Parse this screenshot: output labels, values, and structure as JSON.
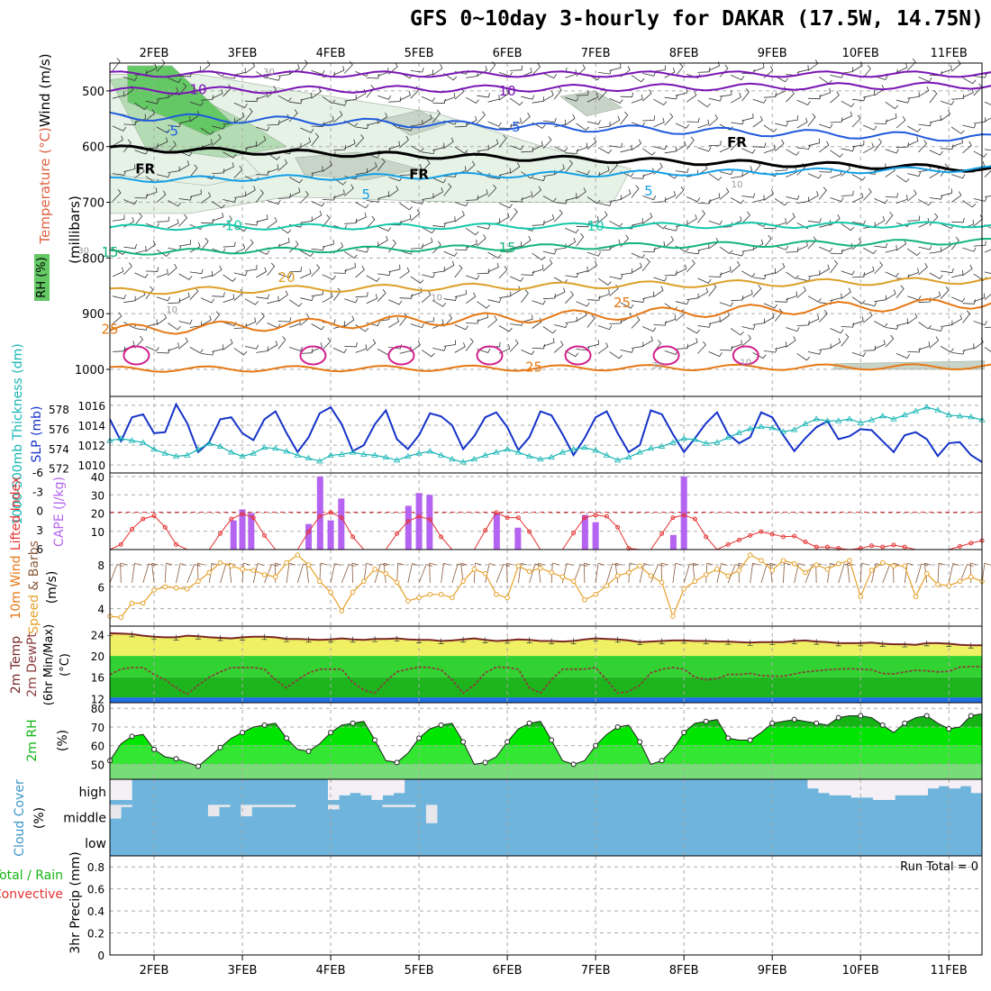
{
  "title": "GFS 0~10day 3-hourly for DAKAR (17.5W, 14.75N)",
  "colors": {
    "rh_light": "#e6f2e6",
    "rh_mid": "#b4dcb4",
    "rh_dark": "#64c864",
    "rh_gray": "#c8d4c8",
    "freezing": "#000000",
    "temp_cold": "#7814b4",
    "temp_blue": "#1e5adc",
    "temp_lightblue": "#14a0e6",
    "temp_teal": "#14c8aa",
    "temp_green": "#14b478",
    "temp_gold": "#dca028",
    "temp_orange": "#e67814",
    "temp_magenta": "#d21e8c",
    "slp": "#1432c8",
    "thickness": "#14b4b4",
    "lifted_index": "#e63232",
    "cape": "#b464f0",
    "wind_speed": "#e6a028",
    "temp_line": "#7a2828",
    "dewpt_line": "#8c3c3c",
    "cloud": "#6eb4dc",
    "cloud_clear": "#f5f0f5",
    "rh2m": "#00e600"
  },
  "chart_data": [
    {
      "type": "heatmap",
      "name": "upper",
      "ylabel": "(millibars)",
      "y_ticks": [
        500,
        600,
        700,
        800,
        900,
        1000
      ],
      "ylim": [
        450,
        1000
      ],
      "x_ticks": [
        "2FEB",
        "3FEB",
        "4FEB",
        "5FEB",
        "6FEB",
        "7FEB",
        "8FEB",
        "9FEB",
        "10FEB",
        "11FEB"
      ],
      "legend": {
        "rh": "RH (%)",
        "temp": "Temperature (°C)",
        "wind": "Wind (m/s)"
      },
      "contour_labels": [
        {
          "label": "10",
          "x": 2.5,
          "p": 498,
          "color": "temp_cold"
        },
        {
          "label": "10",
          "x": 6.0,
          "p": 500,
          "color": "temp_cold"
        },
        {
          "label": "-5",
          "x": 2.2,
          "p": 572,
          "color": "temp_blue"
        },
        {
          "label": "5",
          "x": 6.1,
          "p": 565,
          "color": "temp_blue"
        },
        {
          "label": "FR",
          "x": 1.9,
          "p": 640,
          "color": "freezing"
        },
        {
          "label": "FR",
          "x": 5.0,
          "p": 650,
          "color": "freezing"
        },
        {
          "label": "FR",
          "x": 8.6,
          "p": 592,
          "color": "freezing"
        },
        {
          "label": "5",
          "x": 4.4,
          "p": 686,
          "color": "temp_lightblue"
        },
        {
          "label": "5",
          "x": 7.6,
          "p": 680,
          "color": "temp_lightblue"
        },
        {
          "label": "10",
          "x": 2.9,
          "p": 742,
          "color": "temp_teal"
        },
        {
          "label": "10",
          "x": 7.0,
          "p": 743,
          "color": "temp_teal"
        },
        {
          "label": "15",
          "x": 1.5,
          "p": 790,
          "color": "temp_green"
        },
        {
          "label": "15",
          "x": 6.0,
          "p": 782,
          "color": "temp_green"
        },
        {
          "label": "20",
          "x": 3.5,
          "p": 835,
          "color": "temp_gold"
        },
        {
          "label": "25",
          "x": 1.5,
          "p": 928,
          "color": "temp_orange"
        },
        {
          "label": "25",
          "x": 7.3,
          "p": 880,
          "color": "temp_orange"
        },
        {
          "label": "25",
          "x": 6.3,
          "p": 996,
          "color": "temp_orange"
        },
        {
          "label": "30",
          "x": 3.3,
          "p": 463,
          "color": "rh_gray"
        },
        {
          "label": "30",
          "x": 1.2,
          "p": 784,
          "color": "rh_gray"
        },
        {
          "label": "10",
          "x": 5.2,
          "p": 868,
          "color": "rh_gray"
        },
        {
          "label": "10",
          "x": 8.6,
          "p": 665,
          "color": "rh_gray"
        },
        {
          "label": "10",
          "x": 8.7,
          "p": 985,
          "color": "rh_gray"
        },
        {
          "label": "30",
          "x": 7.7,
          "p": 990,
          "color": "rh_gray"
        },
        {
          "label": "10",
          "x": 2.2,
          "p": 890,
          "color": "rh_gray"
        }
      ]
    },
    {
      "type": "line",
      "name": "slp_thickness",
      "ylabel_left": "1000-500mb Thickness (dm)",
      "ylabel_right": "SLP (mb)",
      "left_ticks": [
        572,
        574,
        576,
        578
      ],
      "right_ticks": [
        1010,
        1012,
        1014,
        1016
      ],
      "ylim_left": [
        571.5,
        579.3
      ],
      "ylim_right": [
        1009.2,
        1016.9
      ],
      "series": [
        {
          "name": "SLP",
          "axis": "right",
          "color": "slp",
          "values": [
            1014.6,
            1012.4,
            1014.8,
            1015.1,
            1013.2,
            1013.3,
            1016.1,
            1014.2,
            1011.3,
            1012.3,
            1014.6,
            1014.8,
            1013.2,
            1012.5,
            1014.6,
            1015.4,
            1013.2,
            1011.3,
            1012.8,
            1015.2,
            1015.8,
            1014.1,
            1011.4,
            1012.0,
            1014.1,
            1015.5,
            1012.6,
            1011.6,
            1013.0,
            1015.2,
            1014.9,
            1014.0,
            1011.6,
            1012.9,
            1014.8,
            1015.3,
            1013.8,
            1011.5,
            1012.8,
            1015.4,
            1015.0,
            1013.1,
            1011.0,
            1012.7,
            1014.8,
            1015.4,
            1013.2,
            1011.3,
            1012.0,
            1015.5,
            1015.1,
            1013.1,
            1011.3,
            1012.7,
            1014.2,
            1015.3,
            1013.1,
            1012.2,
            1012.8,
            1015.3,
            1014.8,
            1013.0,
            1011.4,
            1012.7,
            1013.8,
            1014.4,
            1012.6,
            1012.9,
            1013.6,
            1013.5,
            1012.4,
            1011.3,
            1013.0,
            1013.3,
            1012.6,
            1010.9,
            1012.2,
            1012.3,
            1011.0,
            1010.3
          ]
        },
        {
          "name": "Thickness",
          "axis": "left",
          "color": "thickness",
          "values": [
            574.8,
            575.0,
            574.8,
            574.6,
            573.9,
            573.5,
            573.2,
            573.3,
            573.9,
            574.5,
            574.2,
            573.6,
            573.2,
            573.5,
            574.1,
            574.0,
            573.7,
            573.3,
            573.0,
            572.7,
            573.3,
            573.4,
            573.6,
            573.4,
            573.3,
            573.1,
            572.8,
            573.2,
            573.5,
            573.7,
            573.3,
            572.9,
            572.6,
            572.9,
            573.3,
            573.6,
            573.9,
            573.6,
            573.2,
            572.9,
            573.1,
            573.6,
            573.9,
            574.1,
            573.8,
            573.3,
            572.8,
            573.1,
            573.6,
            574.0,
            574.2,
            574.6,
            575.0,
            574.9,
            574.5,
            574.6,
            575.1,
            575.6,
            576.0,
            576.2,
            576.1,
            575.7,
            575.9,
            576.5,
            577.0,
            576.8,
            576.8,
            577.0,
            576.6,
            576.9,
            577.3,
            577.0,
            577.4,
            577.8,
            578.2,
            577.9,
            577.4,
            577.3,
            577.2,
            576.9
          ]
        }
      ]
    },
    {
      "type": "bar",
      "name": "li_cape",
      "ylabel_left": "Lifted Index",
      "ylabel_right": "CAPE (J/kg)",
      "li_ticks": [
        "-6",
        "-3",
        "0",
        "3",
        "6"
      ],
      "li_values": [
        -6,
        -3,
        0,
        3,
        6
      ],
      "cape_ticks": [
        10,
        20,
        30,
        40
      ],
      "li_ylim": [
        -6,
        6
      ],
      "cape_ylim": [
        0,
        42
      ],
      "cape_bars": [
        {
          "x": 2.9,
          "v": 16
        },
        {
          "x": 3.0,
          "v": 22
        },
        {
          "x": 3.1,
          "v": 20
        },
        {
          "x": 3.75,
          "v": 14
        },
        {
          "x": 3.88,
          "v": 40
        },
        {
          "x": 4.0,
          "v": 16
        },
        {
          "x": 4.12,
          "v": 28
        },
        {
          "x": 4.88,
          "v": 24
        },
        {
          "x": 5.0,
          "v": 31
        },
        {
          "x": 5.12,
          "v": 30
        },
        {
          "x": 5.88,
          "v": 20
        },
        {
          "x": 6.12,
          "v": 12
        },
        {
          "x": 6.88,
          "v": 19
        },
        {
          "x": 7.0,
          "v": 15
        },
        {
          "x": 7.88,
          "v": 8
        },
        {
          "x": 8.0,
          "v": 40
        }
      ],
      "li_series": {
        "name": "Lifted Index",
        "color": "lifted_index",
        "values": [
          6.0,
          5.2,
          2.8,
          1.2,
          0.7,
          2.5,
          5.2,
          6.0,
          6.0,
          6.0,
          3.5,
          1.2,
          0.4,
          1.0,
          3.8,
          6.0,
          6.0,
          6.0,
          3.2,
          0.8,
          0.2,
          1.0,
          4.0,
          6.0,
          6.0,
          6.0,
          3.5,
          1.6,
          0.8,
          1.3,
          4.0,
          6.0,
          6.0,
          6.0,
          3.0,
          0.2,
          1.0,
          1.0,
          3.2,
          6.0,
          6.0,
          6.0,
          3.4,
          1.0,
          0.6,
          0.8,
          2.5,
          5.8,
          6.0,
          6.0,
          3.5,
          1.0,
          0.6,
          1.2,
          4.0,
          6.0,
          5.2,
          4.5,
          3.8,
          3.2,
          3.6,
          4.0,
          3.9,
          4.8,
          5.6,
          5.6,
          5.8,
          6.0,
          5.8,
          5.4,
          5.6,
          5.3,
          5.6,
          6.0,
          6.0,
          6.0,
          6.0,
          5.5,
          5.0,
          4.6
        ]
      }
    },
    {
      "type": "line",
      "name": "wind10m",
      "ylabel": "10m Wind Speed & Barbs (m/s)",
      "y_ticks": [
        4,
        6,
        8
      ],
      "ylim": [
        2.4,
        9.4
      ],
      "series": [
        {
          "name": "Wind Speed",
          "color": "wind_speed",
          "values": [
            3.3,
            3.2,
            4.5,
            4.5,
            5.7,
            6.0,
            5.9,
            5.8,
            6.5,
            7.3,
            8.2,
            7.9,
            7.6,
            7.5,
            7.1,
            6.9,
            8.2,
            8.9,
            8.0,
            6.5,
            5.5,
            3.8,
            5.5,
            6.5,
            7.6,
            7.2,
            6.4,
            4.7,
            5.0,
            5.3,
            5.3,
            5.0,
            6.5,
            7.6,
            7.2,
            5.3,
            5.0,
            7.9,
            7.4,
            7.7,
            7.3,
            6.9,
            6.5,
            4.8,
            5.3,
            6.1,
            7.0,
            7.3,
            7.9,
            7.0,
            6.4,
            3.3,
            5.8,
            6.5,
            7.1,
            7.6,
            7.0,
            7.5,
            8.9,
            8.4,
            7.5,
            8.4,
            8.1,
            7.3,
            8.0,
            7.6,
            8.1,
            8.4,
            5.1,
            7.5,
            8.2,
            7.9,
            7.9,
            5.1,
            7.2,
            6.2,
            6.1,
            6.5,
            6.9,
            6.5
          ]
        }
      ]
    },
    {
      "type": "area",
      "name": "temp2m",
      "ylabel": "2m Temp 2m DewPt (6hr Min/Max) (°C)",
      "y_ticks": [
        12,
        16,
        20,
        24
      ],
      "ylim": [
        11.2,
        25.6
      ],
      "temp_values": [
        24.3,
        24.2,
        24.1,
        23.8,
        23.6,
        23.5,
        23.5,
        23.8,
        23.7,
        23.5,
        23.4,
        23.3,
        23.5,
        23.6,
        23.6,
        23.5,
        23.2,
        23.2,
        23.1,
        23.0,
        23.1,
        23.3,
        23.1,
        23.0,
        23.2,
        23.2,
        23.3,
        23.1,
        23.0,
        23.0,
        22.8,
        22.9,
        23.1,
        23.3,
        23.0,
        22.8,
        22.9,
        23.1,
        23.0,
        22.8,
        22.8,
        22.7,
        22.8,
        23.1,
        23.3,
        23.2,
        23.1,
        22.9,
        22.6,
        22.7,
        22.8,
        22.9,
        22.9,
        22.8,
        22.8,
        22.7,
        22.7,
        22.6,
        22.5,
        22.6,
        22.6,
        22.6,
        22.8,
        22.9,
        22.7,
        22.6,
        22.4,
        22.4,
        22.4,
        22.5,
        22.3,
        22.2,
        22.2,
        22.1,
        22.4,
        22.4,
        22.3,
        22.1,
        22.0,
        22.0
      ],
      "dew_values": [
        16.5,
        17.5,
        17.8,
        17.8,
        16.5,
        15.5,
        14.0,
        12.8,
        14.5,
        16.0,
        17.0,
        17.8,
        17.8,
        17.8,
        17.5,
        15.5,
        14.0,
        15.5,
        16.8,
        17.5,
        17.5,
        17.5,
        15.0,
        13.6,
        13.0,
        15.2,
        17.0,
        17.5,
        17.9,
        17.8,
        17.4,
        15.5,
        13.0,
        14.5,
        16.8,
        17.9,
        17.8,
        17.5,
        14.0,
        13.0,
        15.5,
        17.5,
        17.5,
        17.5,
        17.8,
        15.5,
        13.0,
        13.3,
        14.5,
        16.8,
        17.5,
        17.8,
        17.5,
        16.0,
        15.5,
        15.7,
        16.5,
        16.5,
        16.7,
        16.3,
        16.2,
        16.2,
        16.6,
        17.0,
        17.2,
        17.4,
        17.5,
        17.6,
        17.5,
        17.4,
        16.7,
        16.6,
        17.0,
        17.3,
        17.2,
        17.0,
        17.1,
        17.9,
        18.0,
        18.0
      ]
    },
    {
      "type": "area",
      "name": "rh2m",
      "ylabel": "2m RH (%)",
      "y_ticks": [
        50,
        60,
        70,
        80
      ],
      "ylim": [
        42,
        83
      ],
      "values": [
        52,
        61,
        65,
        66,
        58,
        54,
        53,
        51,
        49,
        54,
        59,
        64,
        67,
        70,
        71,
        72,
        64,
        58,
        57,
        61,
        67,
        71,
        72,
        73,
        63,
        52,
        51,
        56,
        64,
        69,
        71,
        72,
        62,
        50,
        51,
        54,
        62,
        69,
        72,
        73,
        63,
        52,
        50,
        52,
        60,
        66,
        70,
        71,
        62,
        50,
        52,
        58,
        67,
        72,
        73,
        74,
        64,
        63,
        63,
        67,
        72,
        73,
        74,
        73,
        72,
        71,
        75,
        76,
        76,
        75,
        71,
        67,
        72,
        75,
        76,
        72,
        69,
        70,
        76,
        77
      ]
    },
    {
      "type": "heatmap",
      "name": "cloud",
      "ylabel": "Cloud Cover (%)",
      "levels": [
        "high",
        "middle",
        "low"
      ],
      "high_clear": [
        0.9,
        0.9,
        0,
        0,
        0,
        0,
        0,
        0,
        0,
        0,
        0,
        0,
        0,
        0,
        0,
        0,
        0,
        0,
        0,
        0,
        0.9,
        0.7,
        0.6,
        0.7,
        0.9,
        0.7,
        0.6,
        0,
        0,
        0,
        0,
        0,
        0,
        0,
        0,
        0,
        0,
        0,
        0,
        0,
        0,
        0,
        0,
        0,
        0,
        0,
        0,
        0,
        0,
        0,
        0,
        0,
        0,
        0,
        0,
        0,
        0,
        0,
        0,
        0,
        0,
        0,
        0,
        0,
        0.4,
        0.6,
        0.7,
        0.7,
        0.8,
        0.8,
        0.9,
        0.9,
        0.7,
        0.7,
        0.7,
        0.4,
        0.3,
        0.4,
        0.3,
        0.6
      ],
      "mid_clear": [
        0.6,
        0.1,
        0,
        0,
        0,
        0,
        0,
        0,
        0,
        0.5,
        0.1,
        0,
        0.5,
        0.1,
        0.1,
        0.1,
        0.1,
        0,
        0,
        0,
        0.2,
        0,
        0,
        0,
        0,
        0.1,
        0.1,
        0.1,
        0,
        0.8,
        0,
        0,
        0,
        0,
        0,
        0,
        0,
        0,
        0,
        0,
        0,
        0,
        0,
        0,
        0,
        0,
        0,
        0,
        0,
        0,
        0,
        0,
        0,
        0,
        0,
        0,
        0,
        0,
        0,
        0,
        0,
        0,
        0,
        0,
        0,
        0,
        0,
        0,
        0,
        0,
        0,
        0,
        0,
        0,
        0,
        0,
        0,
        0,
        0,
        0
      ]
    },
    {
      "type": "bar",
      "name": "precip",
      "ylabel": "3hr Precip (mm)",
      "legend": {
        "total": "Total / Rain",
        "convective": "Convective"
      },
      "y_ticks": [
        "0",
        "0.2",
        "0.4",
        "0.6",
        "0.8"
      ],
      "y_values": [
        0,
        0.2,
        0.4,
        0.6,
        0.8
      ],
      "ylim": [
        0,
        0.9
      ],
      "run_total_label": "Run Total = 0",
      "values": []
    }
  ]
}
